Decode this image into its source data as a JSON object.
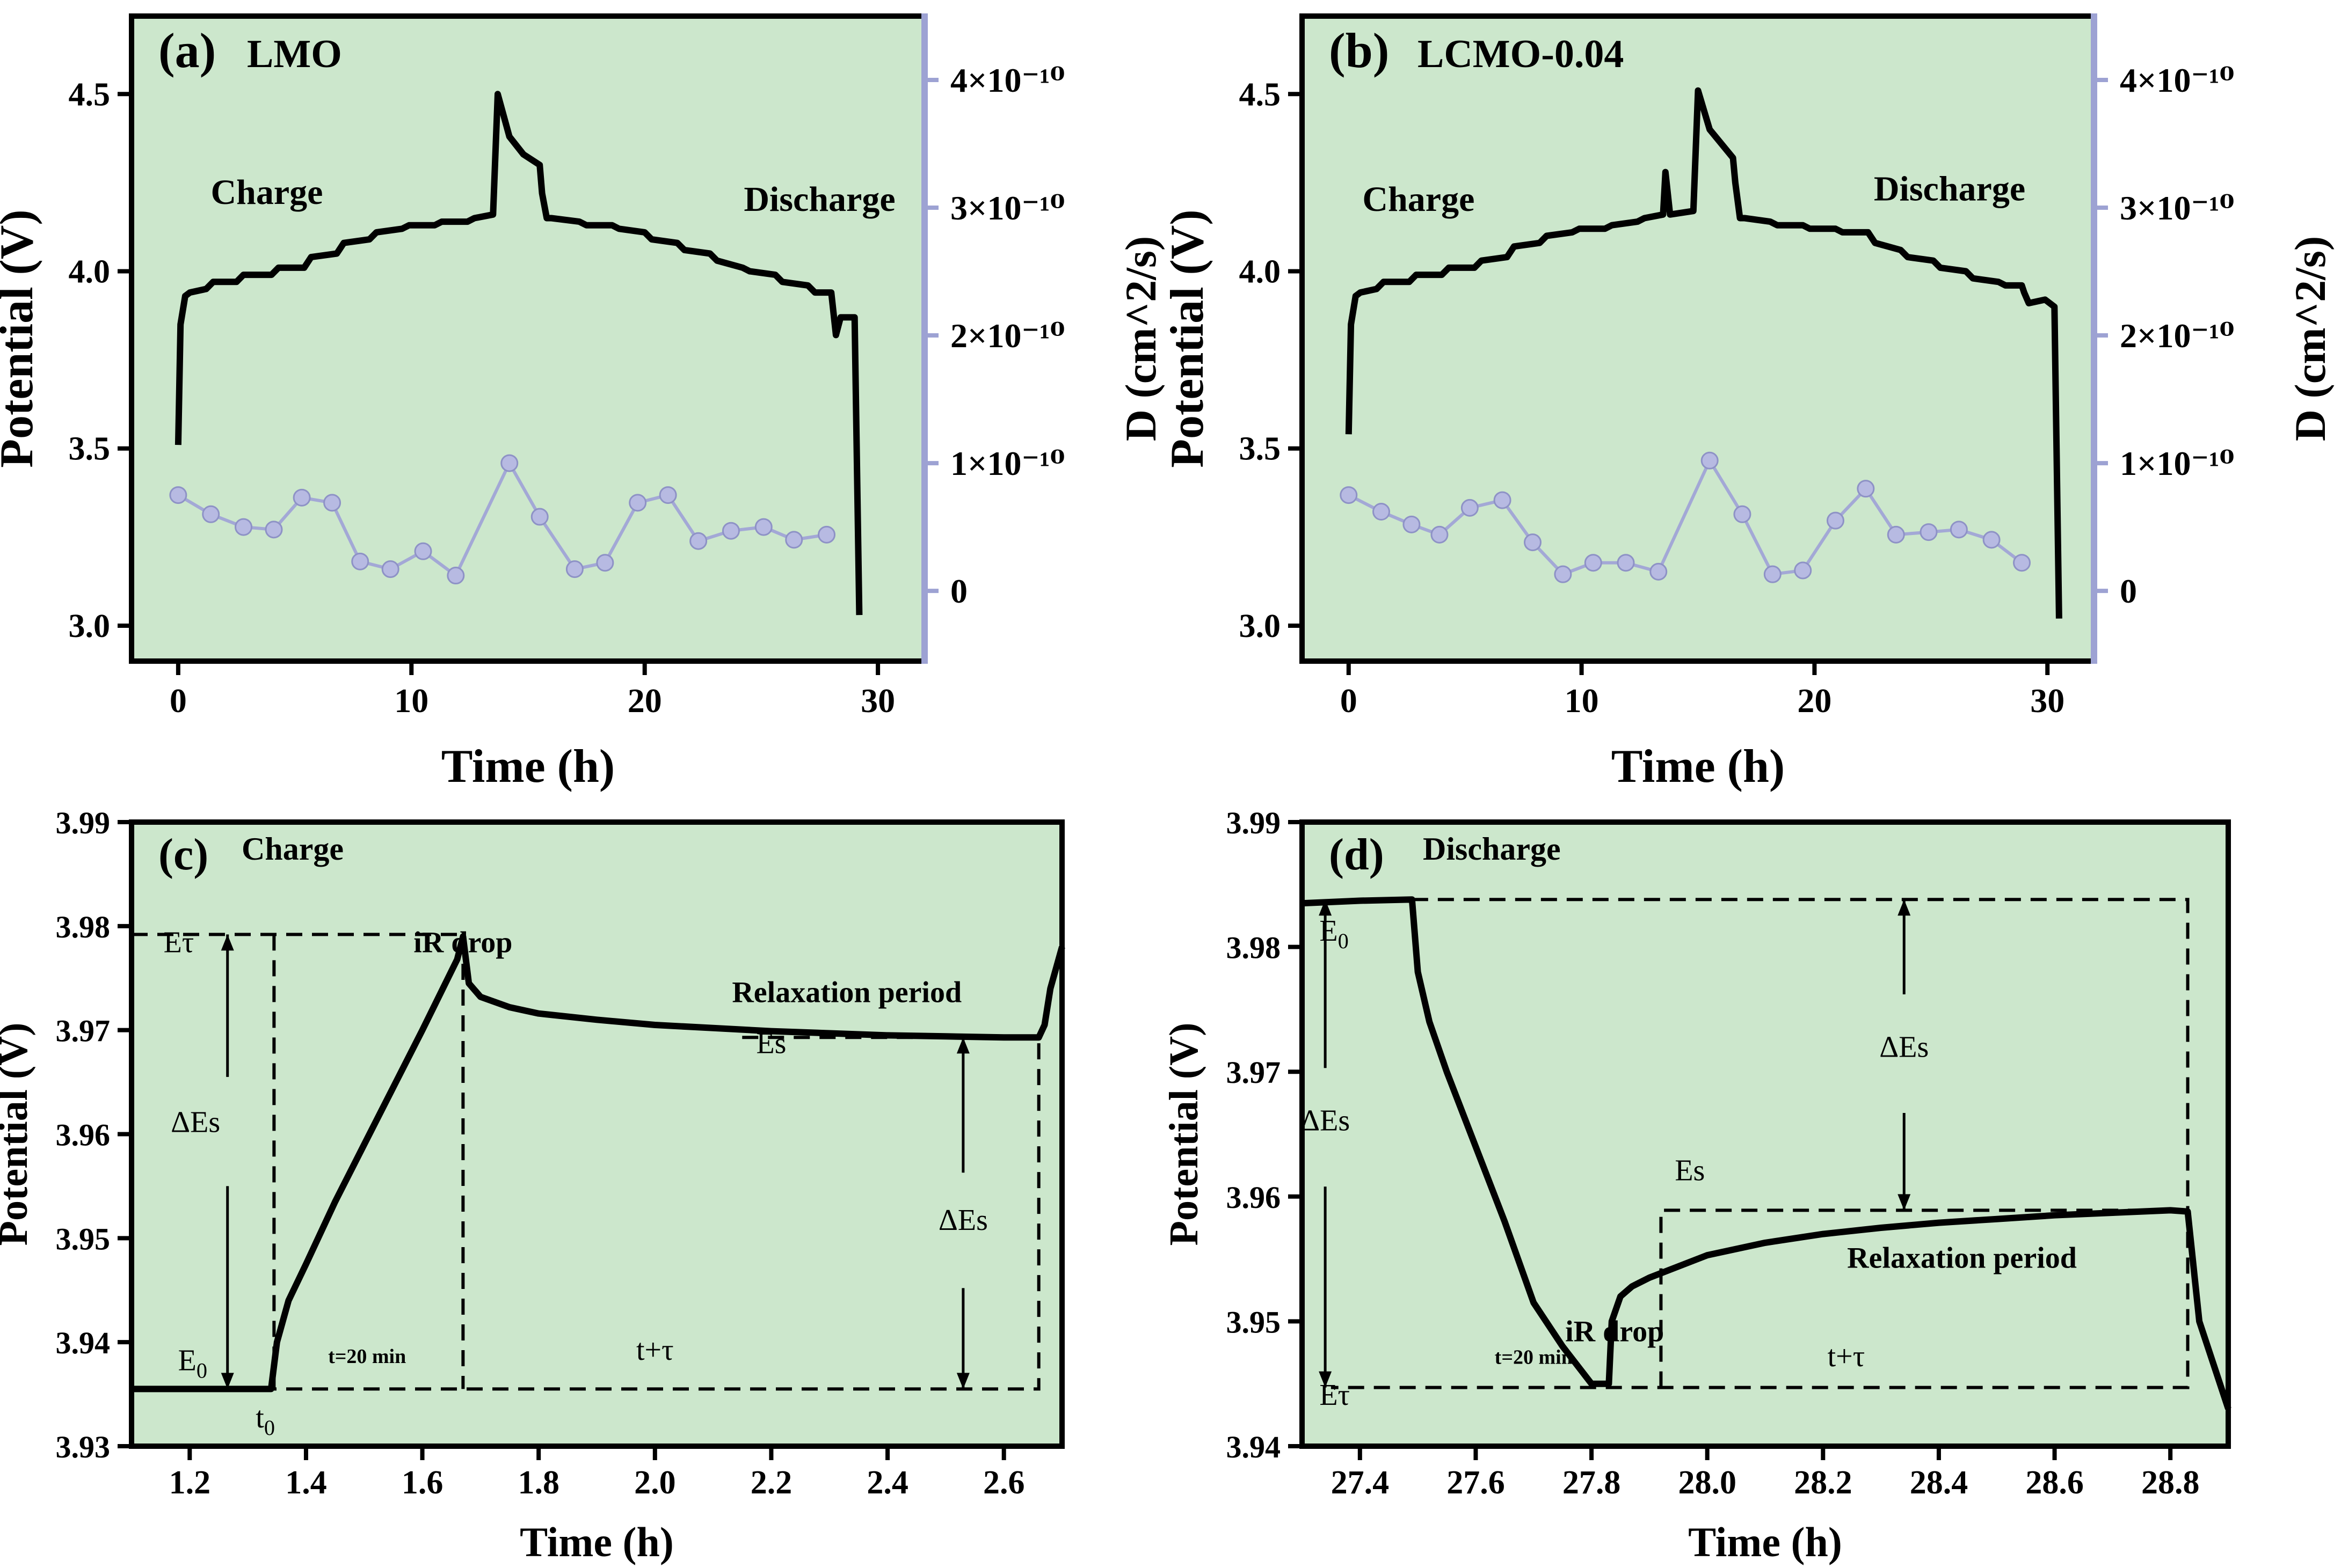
{
  "colors": {
    "panel_bg": "#cce7cc",
    "potential_line": "#000000",
    "diffusion_line": "#a3a8d6",
    "diffusion_axis": "#9da2d3"
  },
  "chart_data": [
    {
      "id": "a",
      "type": "line",
      "panel_label": "(a)",
      "title": "LMO",
      "xlabel": "Time (h)",
      "ylabel": "Potential (V)",
      "y2label": "D (cm^2/s)",
      "xlim": [
        -2,
        32
      ],
      "ylim": [
        2.9,
        4.72
      ],
      "y2lim": [
        -5.5e-11,
        4.5e-10
      ],
      "xticks": [
        0,
        10,
        20,
        30
      ],
      "yticks": [
        3.0,
        3.5,
        4.0,
        4.5
      ],
      "ytick_labels": [
        "3.0",
        "3.5",
        "4.0",
        "4.5"
      ],
      "y2ticks": [
        0,
        1e-10,
        2e-10,
        3e-10,
        4e-10
      ],
      "y2tick_labels": [
        "0",
        "1×10⁻¹⁰",
        "2×10⁻¹⁰",
        "3×10⁻¹⁰",
        "4×10⁻¹⁰"
      ],
      "annotations": [
        {
          "text": "Charge",
          "x": 3.8,
          "y": 4.19
        },
        {
          "text": "Discharge",
          "x": 27.5,
          "y": 4.17
        }
      ],
      "series": [
        {
          "name": "Potential",
          "axis": "left",
          "x": [
            0,
            0.1,
            0.3,
            0.5,
            1.2,
            1.5,
            2.5,
            2.8,
            4.0,
            4.3,
            5.4,
            5.7,
            6.8,
            7.1,
            8.2,
            8.5,
            9.6,
            9.9,
            11.0,
            11.3,
            12.4,
            12.7,
            13.5,
            13.7,
            14.2,
            14.8,
            15.5,
            15.6,
            15.8,
            16.0,
            17.2,
            17.5,
            18.6,
            18.9,
            20.0,
            20.3,
            21.4,
            21.7,
            22.8,
            23.1,
            24.2,
            24.5,
            25.6,
            25.9,
            27.0,
            27.3,
            28.0,
            28.2,
            28.4,
            28.6,
            29.0,
            29.2
          ],
          "y": [
            3.51,
            3.85,
            3.93,
            3.94,
            3.95,
            3.97,
            3.97,
            3.99,
            3.99,
            4.01,
            4.01,
            4.04,
            4.05,
            4.08,
            4.09,
            4.11,
            4.12,
            4.13,
            4.13,
            4.14,
            4.14,
            4.15,
            4.16,
            4.5,
            4.38,
            4.33,
            4.3,
            4.22,
            4.15,
            4.15,
            4.14,
            4.13,
            4.13,
            4.12,
            4.11,
            4.09,
            4.08,
            4.06,
            4.05,
            4.03,
            4.01,
            4.0,
            3.99,
            3.97,
            3.96,
            3.94,
            3.94,
            3.82,
            3.87,
            3.87,
            3.87,
            3.03
          ]
        },
        {
          "name": "D",
          "axis": "right",
          "markers": true,
          "x": [
            0,
            1.4,
            2.8,
            4.1,
            5.3,
            6.6,
            7.8,
            9.1,
            10.5,
            11.9,
            14.2,
            15.5,
            17.0,
            18.3,
            19.7,
            21.0,
            22.3,
            23.7,
            25.1,
            26.4,
            27.8
          ],
          "y": [
            7.5e-11,
            6e-11,
            5e-11,
            4.8e-11,
            7.3e-11,
            6.9e-11,
            2.3e-11,
            1.7e-11,
            3.1e-11,
            1.2e-11,
            1e-10,
            5.8e-11,
            1.7e-11,
            2.2e-11,
            6.9e-11,
            7.5e-11,
            3.9e-11,
            4.7e-11,
            5e-11,
            4e-11,
            4.4e-11
          ]
        }
      ]
    },
    {
      "id": "b",
      "type": "line",
      "panel_label": "(b)",
      "title": "LCMO-0.04",
      "xlabel": "Time (h)",
      "ylabel": "Potential (V)",
      "y2label": "D (cm^2/s)",
      "xlim": [
        -2,
        32
      ],
      "ylim": [
        2.9,
        4.72
      ],
      "y2lim": [
        -5.5e-11,
        4.5e-10
      ],
      "xticks": [
        0,
        10,
        20,
        30
      ],
      "yticks": [
        3.0,
        3.5,
        4.0,
        4.5
      ],
      "ytick_labels": [
        "3.0",
        "3.5",
        "4.0",
        "4.5"
      ],
      "y2ticks": [
        0,
        1e-10,
        2e-10,
        3e-10,
        4e-10
      ],
      "y2tick_labels": [
        "0",
        "1×10⁻¹⁰",
        "2×10⁻¹⁰",
        "3×10⁻¹⁰",
        "4×10⁻¹⁰"
      ],
      "annotations": [
        {
          "text": "Charge",
          "x": 3.0,
          "y": 4.17
        },
        {
          "text": "Discharge",
          "x": 25.8,
          "y": 4.2
        }
      ],
      "series": [
        {
          "name": "Potential",
          "axis": "left",
          "x": [
            0,
            0.1,
            0.3,
            0.5,
            1.2,
            1.5,
            2.6,
            2.9,
            4.0,
            4.3,
            5.4,
            5.7,
            6.8,
            7.1,
            8.2,
            8.5,
            9.6,
            9.9,
            11.0,
            11.3,
            12.4,
            12.7,
            13.5,
            13.6,
            13.8,
            14.8,
            15.0,
            15.5,
            16.5,
            16.6,
            16.8,
            17.0,
            18.1,
            18.4,
            19.5,
            19.8,
            20.9,
            21.2,
            22.3,
            22.6,
            23.7,
            24.0,
            25.1,
            25.4,
            26.5,
            26.8,
            27.9,
            28.2,
            28.9,
            29.0,
            29.2,
            29.9,
            30.3,
            30.5
          ],
          "y": [
            3.54,
            3.85,
            3.93,
            3.94,
            3.95,
            3.97,
            3.97,
            3.99,
            3.99,
            4.01,
            4.01,
            4.03,
            4.04,
            4.07,
            4.08,
            4.1,
            4.11,
            4.12,
            4.12,
            4.13,
            4.14,
            4.15,
            4.16,
            4.28,
            4.16,
            4.17,
            4.51,
            4.4,
            4.32,
            4.25,
            4.15,
            4.15,
            4.14,
            4.13,
            4.13,
            4.12,
            4.12,
            4.11,
            4.11,
            4.08,
            4.06,
            4.04,
            4.03,
            4.01,
            4.0,
            3.98,
            3.97,
            3.96,
            3.96,
            3.94,
            3.91,
            3.92,
            3.9,
            3.02
          ]
        },
        {
          "name": "D",
          "axis": "right",
          "markers": true,
          "x": [
            0,
            1.4,
            2.7,
            3.9,
            5.2,
            6.6,
            7.9,
            9.2,
            10.5,
            11.9,
            13.3,
            15.5,
            16.9,
            18.2,
            19.5,
            20.9,
            22.2,
            23.5,
            24.9,
            26.2,
            27.6,
            28.9
          ],
          "y": [
            7.5e-11,
            6.2e-11,
            5.2e-11,
            4.4e-11,
            6.5e-11,
            7.1e-11,
            3.8e-11,
            1.3e-11,
            2.2e-11,
            2.2e-11,
            1.5e-11,
            1.02e-10,
            6e-11,
            1.3e-11,
            1.6e-11,
            5.5e-11,
            8e-11,
            4.4e-11,
            4.6e-11,
            4.8e-11,
            4e-11,
            2.2e-11
          ]
        }
      ]
    },
    {
      "id": "c",
      "type": "line",
      "panel_label": "(c)",
      "title": "Charge",
      "xlabel": "Time (h)",
      "ylabel": "Potential (V)",
      "xlim": [
        1.1,
        2.7
      ],
      "ylim": [
        3.93,
        3.99
      ],
      "xticks": [
        1.2,
        1.4,
        1.6,
        1.8,
        2.0,
        2.2,
        2.4,
        2.6
      ],
      "xtick_labels": [
        "1.2",
        "1.4",
        "1.6",
        "1.8",
        "2.0",
        "2.2",
        "2.4",
        "2.6"
      ],
      "yticks": [
        3.93,
        3.94,
        3.95,
        3.96,
        3.97,
        3.98,
        3.99
      ],
      "ytick_labels": [
        "3.93",
        "3.94",
        "3.95",
        "3.96",
        "3.97",
        "3.98",
        "3.99"
      ],
      "annotations": [
        {
          "text": "Eτ",
          "x": 1.155,
          "y": 3.9775
        },
        {
          "text": "ΔEs",
          "x": 1.21,
          "y": 3.9602
        },
        {
          "text": "iR drop",
          "x": 1.67,
          "y": 3.9775
        },
        {
          "text": "Relaxation period",
          "x": 2.33,
          "y": 3.9727
        },
        {
          "text": "Es",
          "x": 2.2,
          "y": 3.9678
        },
        {
          "text": "ΔEs",
          "x": 2.53,
          "y": 3.9508
        },
        {
          "text": "t=20 min",
          "x": 1.505,
          "y": 3.938,
          "small": true
        },
        {
          "text": "t+τ",
          "x": 2.0,
          "y": 3.9383
        },
        {
          "text": "t",
          "sub": "0",
          "x": 1.33,
          "y": 3.9318
        },
        {
          "text": "E",
          "sub": "0",
          "x": 1.18,
          "y": 3.9373
        }
      ],
      "series": [
        {
          "name": "Potential",
          "axis": "left",
          "x": [
            1.1,
            1.2,
            1.34,
            1.35,
            1.37,
            1.4,
            1.45,
            1.5,
            1.55,
            1.6,
            1.66,
            1.67,
            1.68,
            1.7,
            1.75,
            1.8,
            1.9,
            2.0,
            2.1,
            2.2,
            2.3,
            2.4,
            2.5,
            2.6,
            2.66,
            2.67,
            2.68,
            2.7
          ],
          "y": [
            3.9355,
            3.9355,
            3.9355,
            3.94,
            3.944,
            3.9475,
            3.9535,
            3.959,
            3.9645,
            3.97,
            3.9768,
            3.979,
            3.9745,
            3.9732,
            3.9722,
            3.9716,
            3.971,
            3.9705,
            3.9702,
            3.9699,
            3.9697,
            3.9695,
            3.9694,
            3.9693,
            3.9693,
            3.9705,
            3.974,
            3.978
          ]
        }
      ]
    },
    {
      "id": "d",
      "type": "line",
      "panel_label": "(d)",
      "title": "Discharge",
      "xlabel": "Time (h)",
      "ylabel": "Potential (V)",
      "xlim": [
        27.3,
        28.9
      ],
      "ylim": [
        3.94,
        3.99
      ],
      "xticks": [
        27.4,
        27.6,
        27.8,
        28.0,
        28.2,
        28.4,
        28.6,
        28.8
      ],
      "xtick_labels": [
        "27.4",
        "27.6",
        "27.8",
        "28.0",
        "28.2",
        "28.4",
        "28.6",
        "28.8"
      ],
      "yticks": [
        3.94,
        3.95,
        3.96,
        3.97,
        3.98,
        3.99
      ],
      "ytick_labels": [
        "3.94",
        "3.95",
        "3.96",
        "3.97",
        "3.98",
        "3.99"
      ],
      "annotations": [
        {
          "text": "E",
          "sub": "0",
          "x": 27.33,
          "y": 3.9805
        },
        {
          "text": "ΔEs",
          "x": 27.34,
          "y": 3.9653
        },
        {
          "text": "Eτ",
          "x": 27.33,
          "y": 3.9433
        },
        {
          "text": "t=20 min",
          "x": 27.7,
          "y": 3.9466,
          "small": true
        },
        {
          "text": "iR drop",
          "x": 27.84,
          "y": 3.9484
        },
        {
          "text": "t+τ",
          "x": 28.24,
          "y": 3.9464
        },
        {
          "text": "Es",
          "x": 27.97,
          "y": 3.9613
        },
        {
          "text": "ΔEs",
          "x": 28.34,
          "y": 3.9712
        },
        {
          "text": "Relaxation period",
          "x": 28.44,
          "y": 3.9543
        }
      ],
      "series": [
        {
          "name": "Potential",
          "axis": "left",
          "x": [
            27.3,
            27.4,
            27.49,
            27.5,
            27.52,
            27.55,
            27.6,
            27.65,
            27.7,
            27.75,
            27.8,
            27.83,
            27.835,
            27.85,
            27.87,
            27.9,
            28.0,
            28.1,
            28.2,
            28.3,
            28.4,
            28.5,
            28.6,
            28.7,
            28.8,
            28.83,
            28.85,
            28.9
          ],
          "y": [
            3.9835,
            3.9837,
            3.9838,
            3.978,
            3.974,
            3.97,
            3.964,
            3.958,
            3.9515,
            3.948,
            3.945,
            3.945,
            3.95,
            3.952,
            3.9528,
            3.9535,
            3.9553,
            3.9563,
            3.957,
            3.9575,
            3.9579,
            3.9582,
            3.9585,
            3.9587,
            3.9589,
            3.9588,
            3.95,
            3.943
          ]
        }
      ]
    }
  ]
}
